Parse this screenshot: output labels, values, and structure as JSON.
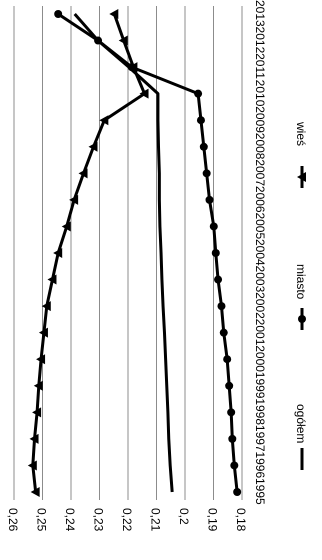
{
  "chart_data": {
    "type": "line",
    "title": "",
    "xlabel": "",
    "ylabel": "",
    "orientation": "rotated-90-clockwise",
    "categories": [
      "1995",
      "1996",
      "1997",
      "1998",
      "1999",
      "2000",
      "2001",
      "2002",
      "2003",
      "2004",
      "2005",
      "2006",
      "2007",
      "2008",
      "2009",
      "2010",
      "2011",
      "2012",
      "2013"
    ],
    "ylim": [
      0.18,
      0.26
    ],
    "ytick_labels": [
      "0,18",
      "0,19",
      "0,2",
      "0,21",
      "0,22",
      "0,23",
      "0,24",
      "0,25",
      "0,26"
    ],
    "grid": true,
    "legend_position": "right",
    "series": [
      {
        "name": "ogółem",
        "marker": "none",
        "values": [
          0.2045,
          0.2052,
          0.2057,
          0.206,
          0.2064,
          0.2068,
          0.2072,
          0.2077,
          0.2081,
          0.2084,
          0.2088,
          0.209,
          0.209,
          0.2093,
          0.2095,
          0.2095,
          0.2197,
          0.2305,
          0.2387
        ]
      },
      {
        "name": "miasto",
        "marker": "circle",
        "values": [
          0.1817,
          0.1827,
          0.1834,
          0.1838,
          0.1845,
          0.1852,
          0.1864,
          0.1872,
          0.1884,
          0.1892,
          0.1899,
          0.1914,
          0.1924,
          0.1934,
          0.1944,
          0.1954,
          0.2187,
          0.2305,
          0.2445
        ]
      },
      {
        "name": "wieś",
        "marker": "triangle",
        "values": [
          0.2524,
          0.2534,
          0.2528,
          0.2519,
          0.2513,
          0.2505,
          0.2495,
          0.2485,
          0.2465,
          0.2445,
          0.2415,
          0.2389,
          0.2356,
          0.2321,
          0.2283,
          0.2142,
          0.2181,
          0.2215,
          0.2248
        ]
      }
    ]
  }
}
